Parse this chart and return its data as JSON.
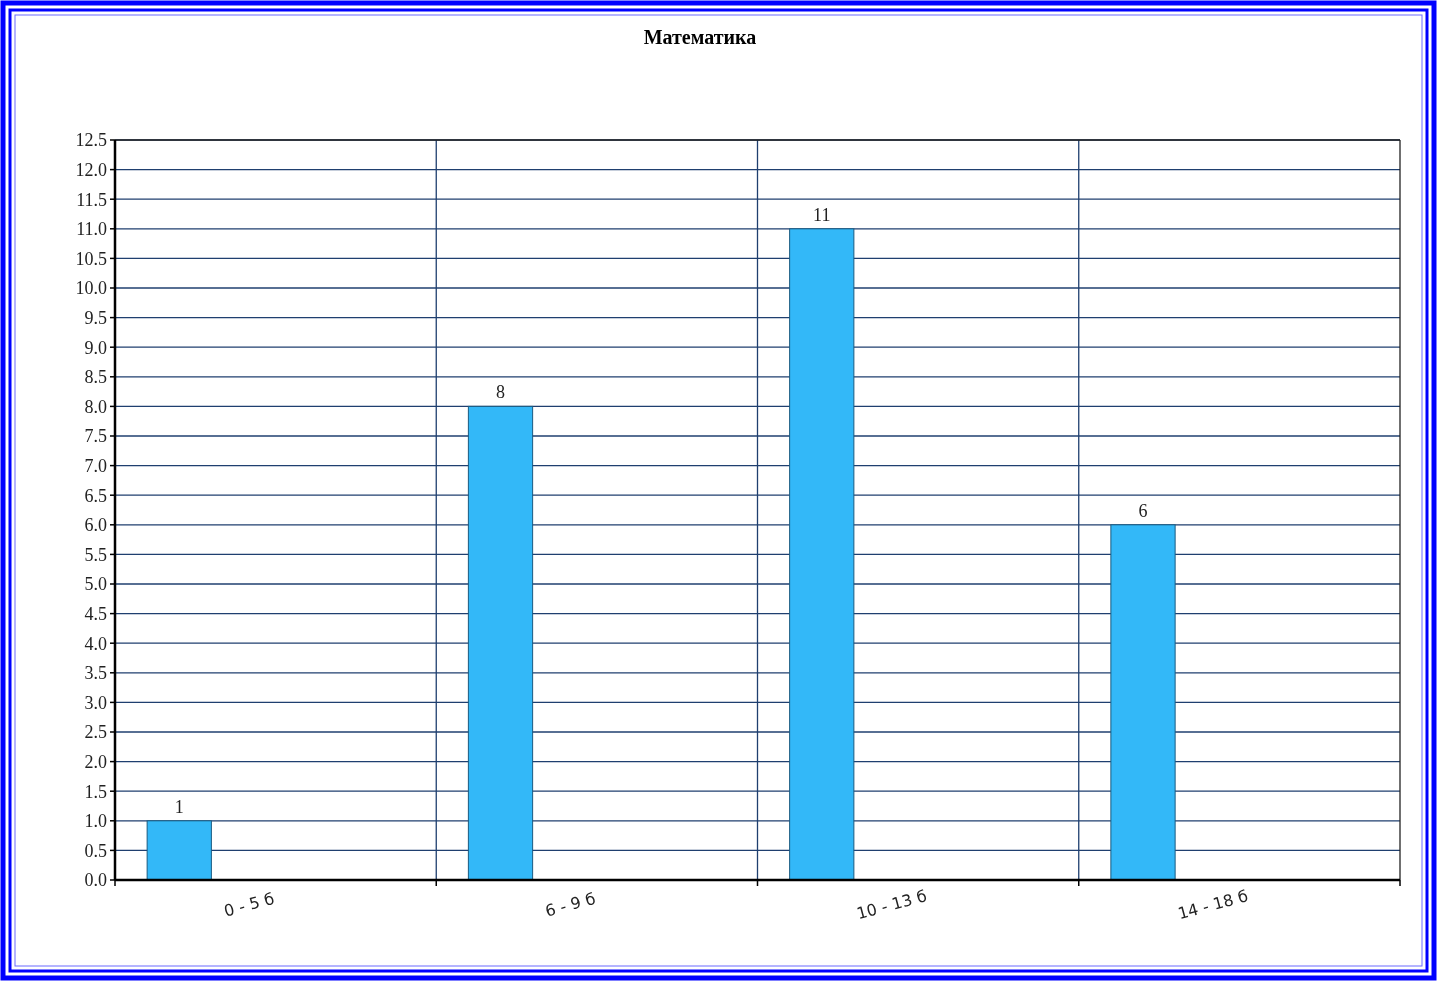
{
  "chart_data": {
    "type": "bar",
    "title": "Математика",
    "categories": [
      "0 - 5 б",
      "6 - 9 б",
      "10 - 13 б",
      "14 - 18 б"
    ],
    "values": [
      1,
      8,
      11,
      6
    ],
    "color": "#33b8f8",
    "ylim": [
      0,
      12.5
    ],
    "yticks": [
      {
        "value": 0,
        "label": "0.0"
      },
      {
        "value": 0.5,
        "label": "0.5"
      },
      {
        "value": 1,
        "label": "1.0"
      },
      {
        "value": 1.5,
        "label": "1.5"
      },
      {
        "value": 2,
        "label": "2.0"
      },
      {
        "value": 2.5,
        "label": "2.5"
      },
      {
        "value": 3,
        "label": "3.0"
      },
      {
        "value": 3.5,
        "label": "3.5"
      },
      {
        "value": 4,
        "label": "4.0"
      },
      {
        "value": 4.5,
        "label": "4.5"
      },
      {
        "value": 5,
        "label": "5.0"
      },
      {
        "value": 5.5,
        "label": "5.5"
      },
      {
        "value": 6,
        "label": "6.0"
      },
      {
        "value": 6.5,
        "label": "6.5"
      },
      {
        "value": 7,
        "label": "7.0"
      },
      {
        "value": 7.5,
        "label": "7.5"
      },
      {
        "value": 8,
        "label": "8.0"
      },
      {
        "value": 8.5,
        "label": "8.5"
      },
      {
        "value": 9,
        "label": "9.0"
      },
      {
        "value": 9.5,
        "label": "9.5"
      },
      {
        "value": 10,
        "label": "10.0"
      },
      {
        "value": 10.5,
        "label": "10.5"
      },
      {
        "value": 11,
        "label": "11.0"
      },
      {
        "value": 11.5,
        "label": "11.5"
      },
      {
        "value": 12,
        "label": "12.0"
      },
      {
        "value": 12.5,
        "label": "12.5"
      }
    ],
    "grid": true,
    "data_labels": true
  }
}
